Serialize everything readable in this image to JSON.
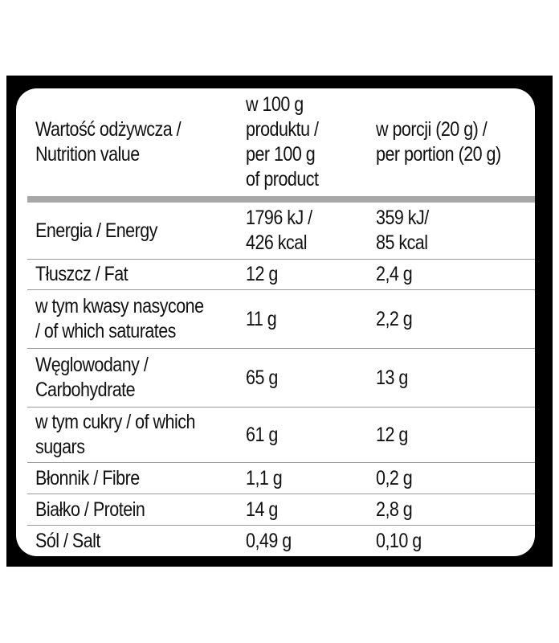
{
  "table": {
    "header": {
      "nutrient": "Wartość odżywcza /\nNutrition value",
      "per100": "w 100 g\nproduktu /\nper 100 g\nof product",
      "perPortion": "w porcji (20 g) /\nper portion (20 g)"
    },
    "rows": [
      {
        "nutrient": "Energia / Energy",
        "per100": "1796 kJ /\n426 kcal",
        "perPortion": "359 kJ/\n85 kcal"
      },
      {
        "nutrient": "Tłuszcz / Fat",
        "per100": "12 g",
        "perPortion": "2,4 g"
      },
      {
        "nutrient": "w tym kwasy nasycone\n/ of which saturates",
        "per100": "11 g",
        "perPortion": "2,2 g"
      },
      {
        "nutrient": "Węglowodany /\nCarbohydrate",
        "per100": "65 g",
        "perPortion": "13 g"
      },
      {
        "nutrient": "w tym cukry / of which\nsugars",
        "per100": "61 g",
        "perPortion": "12 g"
      },
      {
        "nutrient": "Błonnik / Fibre",
        "per100": "1,1 g",
        "perPortion": "0,2 g"
      },
      {
        "nutrient": "Białko / Protein",
        "per100": "14 g",
        "perPortion": "2,8 g"
      },
      {
        "nutrient": "Sól / Salt",
        "per100": "0,49 g",
        "perPortion": "0,10 g"
      }
    ]
  }
}
